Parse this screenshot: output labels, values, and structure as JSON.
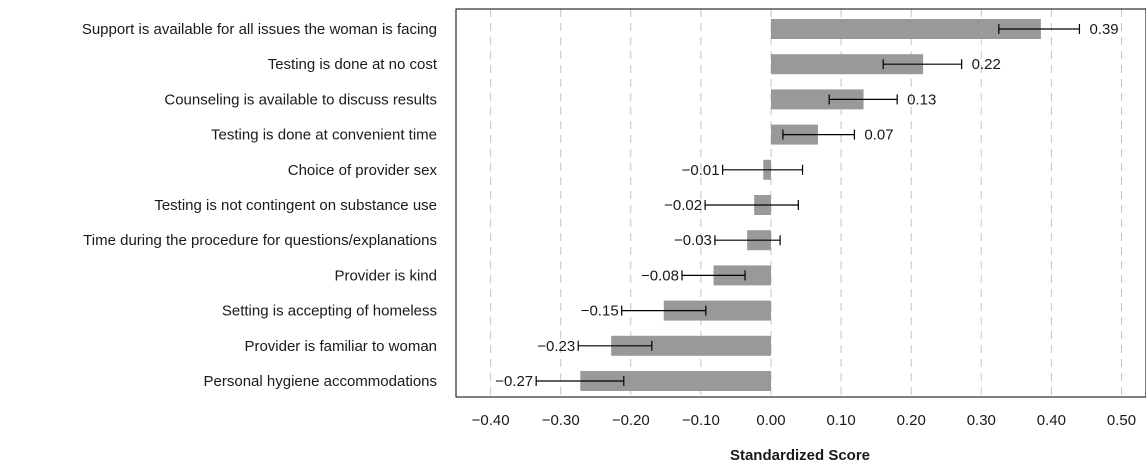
{
  "chart_data": {
    "type": "bar",
    "orientation": "horizontal",
    "title": "",
    "xlabel": "Standardized Score",
    "ylabel": "",
    "xlim": [
      -0.45,
      0.52
    ],
    "x_ticks": [
      -0.4,
      -0.3,
      -0.2,
      -0.1,
      0.0,
      0.1,
      0.2,
      0.3,
      0.4,
      0.5
    ],
    "x_tick_labels": [
      "−0.40",
      "−0.30",
      "−0.20",
      "−0.10",
      "0.00",
      "0.10",
      "0.20",
      "0.30",
      "0.40",
      "0.50"
    ],
    "grid": "vertical dashed",
    "legend": "none",
    "categories": [
      "Support is available for all issues the woman is facing",
      "Testing is done at no cost",
      "Counseling is available to discuss results",
      "Testing is done at convenient time",
      "Choice of provider sex",
      "Testing is not contingent on substance use",
      "Time during the procedure for questions/explanations",
      "Provider is kind",
      "Setting is accepting of homeless",
      "Provider is familiar to woman",
      "Personal hygiene accommodations"
    ],
    "values": [
      0.385,
      0.217,
      0.132,
      0.067,
      -0.011,
      -0.024,
      -0.034,
      -0.082,
      -0.153,
      -0.228,
      -0.272
    ],
    "error_low": [
      0.325,
      0.16,
      0.083,
      0.017,
      -0.069,
      -0.094,
      -0.08,
      -0.127,
      -0.213,
      -0.275,
      -0.335
    ],
    "error_high": [
      0.44,
      0.272,
      0.18,
      0.119,
      0.045,
      0.039,
      0.013,
      -0.037,
      -0.093,
      -0.17,
      -0.21
    ],
    "data_labels": [
      "0.39",
      "0.22",
      "0.13",
      "0.07",
      "−0.01",
      "−0.02",
      "−0.03",
      "−0.08",
      "−0.15",
      "−0.23",
      "−0.27"
    ],
    "colors": {
      "bar": "#999999",
      "error": "#000000",
      "grid": "#c4c4c4",
      "frame": "#000000"
    }
  }
}
